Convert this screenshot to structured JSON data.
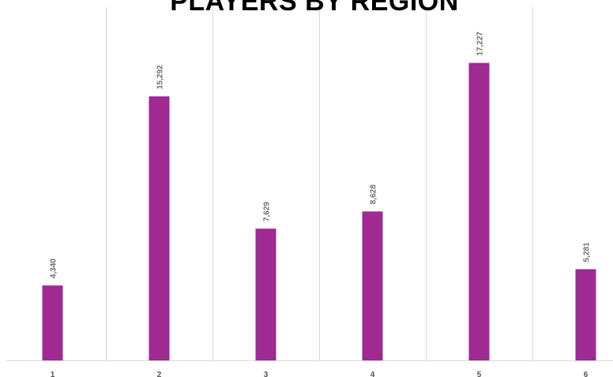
{
  "chart_data": {
    "type": "bar",
    "title": "PLAYERS BY REGION",
    "categories": [
      "1",
      "2",
      "3",
      "4",
      "5",
      "6"
    ],
    "values": [
      4340,
      15292,
      7629,
      8628,
      17227,
      5281
    ],
    "value_labels": [
      "4,340",
      "15,292",
      "7,629",
      "8,628",
      "17,227",
      "5,281"
    ],
    "xlabel": "",
    "ylabel": "",
    "ylim": [
      0,
      20000
    ],
    "grid": "vertical",
    "legend": "none",
    "bar_color": "#9e2a92"
  }
}
